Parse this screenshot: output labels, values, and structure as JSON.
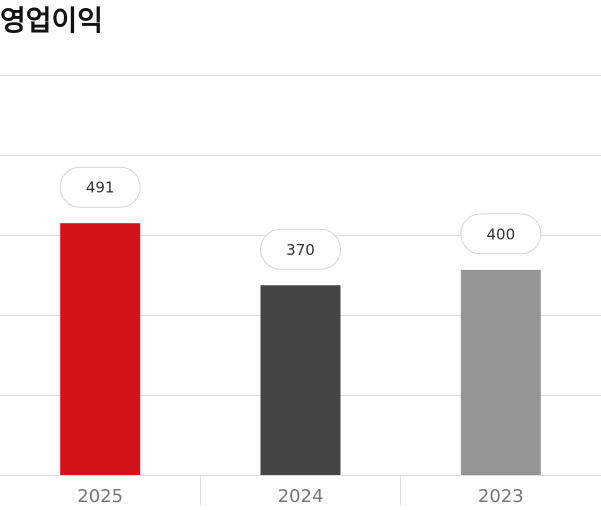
{
  "chart_data": {
    "type": "bar",
    "title": "영업이익",
    "categories": [
      "2025",
      "2024",
      "2023"
    ],
    "values": [
      491,
      370,
      400
    ],
    "colors": [
      "#d41219",
      "#444444",
      "#959595"
    ],
    "ylim": [
      0,
      780
    ]
  }
}
